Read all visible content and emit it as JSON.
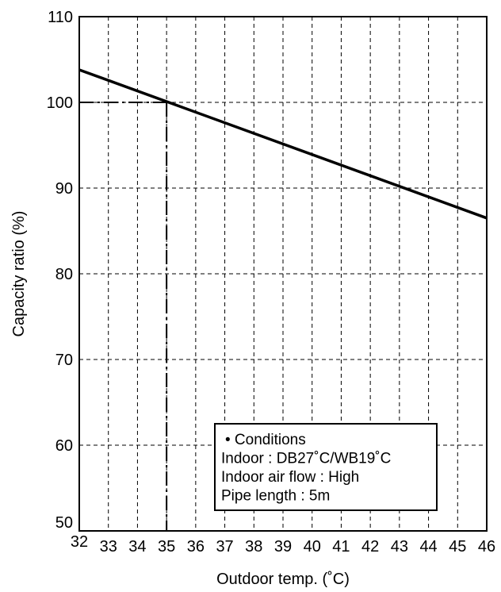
{
  "chart_data": {
    "type": "line",
    "xlabel": "Outdoor temp. (˚C)",
    "ylabel": "Capacity ratio (%)",
    "xlim": [
      32,
      46
    ],
    "ylim": [
      50,
      110
    ],
    "x_ticks": [
      32,
      33,
      34,
      35,
      36,
      37,
      38,
      39,
      40,
      41,
      42,
      43,
      44,
      45,
      46
    ],
    "y_ticks": [
      50,
      60,
      70,
      80,
      90,
      100,
      110
    ],
    "grid": true,
    "series": [
      {
        "x": [
          32,
          46
        ],
        "y": [
          103.8,
          86.5
        ],
        "color": "#000000"
      }
    ],
    "reference": {
      "x": 35,
      "y": 100
    },
    "annotation": {
      "lines": [
        "• Conditions",
        "Indoor : DB27˚C/WB19˚C",
        "Indoor air flow : High",
        "Pipe length : 5m"
      ]
    }
  }
}
